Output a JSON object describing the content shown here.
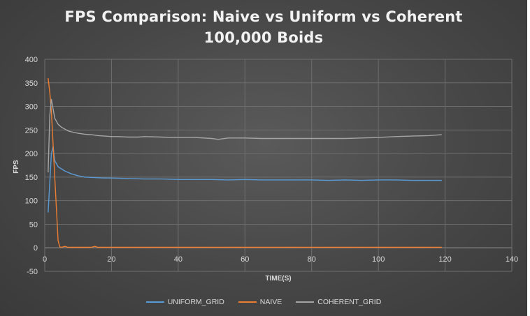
{
  "chart_data": {
    "type": "line",
    "title": "FPS Comparison: Naive vs Uniform vs Coherent",
    "subtitle": "100,000 Boids",
    "xlabel": "TIME(S)",
    "ylabel": "FPS",
    "xlim": [
      0,
      140
    ],
    "ylim": [
      -50,
      400
    ],
    "xticks": [
      0,
      20,
      40,
      60,
      80,
      100,
      120,
      140
    ],
    "yticks": [
      -50,
      0,
      50,
      100,
      150,
      200,
      250,
      300,
      350,
      400
    ],
    "grid": true,
    "legend_position": "bottom",
    "series": [
      {
        "name": "UNIFORM_GRID",
        "color": "#5b9bd5",
        "x": [
          1,
          2,
          2.5,
          3,
          4,
          6,
          8,
          10,
          12,
          15,
          18,
          20,
          25,
          30,
          35,
          40,
          45,
          50,
          55,
          60,
          65,
          70,
          75,
          80,
          85,
          90,
          95,
          100,
          105,
          110,
          115,
          119
        ],
        "y": [
          75,
          200,
          215,
          185,
          172,
          163,
          157,
          153,
          150,
          149,
          148,
          148,
          147,
          146,
          146,
          145,
          145,
          145,
          144,
          145,
          144,
          144,
          144,
          144,
          143,
          144,
          143,
          144,
          144,
          143,
          143,
          143
        ]
      },
      {
        "name": "NAIVE",
        "color": "#ed7d31",
        "x": [
          1,
          1.5,
          2,
          3,
          4,
          4.5,
          5,
          6,
          7,
          10,
          14,
          15,
          16,
          20,
          40,
          60,
          80,
          100,
          119
        ],
        "y": [
          360,
          330,
          290,
          150,
          15,
          2,
          1,
          3,
          1,
          1,
          1,
          3,
          1,
          1,
          1,
          1,
          1,
          1,
          1
        ]
      },
      {
        "name": "COHERENT_GRID",
        "color": "#a5a5a5",
        "x": [
          1,
          1.5,
          2,
          2.5,
          3,
          4,
          5,
          6,
          7,
          8,
          10,
          12,
          14,
          16,
          18,
          20,
          22,
          25,
          28,
          30,
          35,
          38,
          40,
          45,
          50,
          52,
          55,
          60,
          65,
          70,
          75,
          80,
          85,
          90,
          95,
          100,
          105,
          110,
          115,
          119
        ],
        "y": [
          160,
          280,
          315,
          295,
          275,
          262,
          256,
          252,
          248,
          246,
          243,
          241,
          240,
          238,
          237,
          236,
          236,
          235,
          235,
          236,
          235,
          234,
          234,
          234,
          232,
          230,
          233,
          233,
          232,
          232,
          232,
          232,
          232,
          232,
          233,
          234,
          236,
          237,
          238,
          240
        ]
      }
    ]
  }
}
